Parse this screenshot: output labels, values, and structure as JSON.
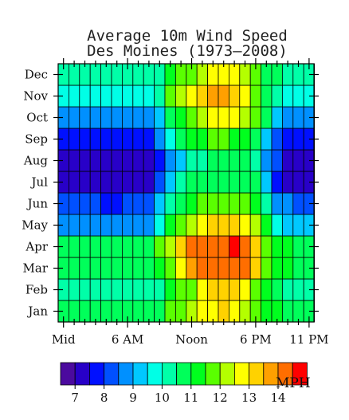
{
  "chart_data": {
    "type": "heatmap",
    "title": "Average 10m Wind Speed",
    "subtitle": "Des Moines (1973–2008)",
    "x_tick_labels": [
      "Mid",
      "6 AM",
      "Noon",
      "6 PM",
      "11 PM"
    ],
    "x_tick_hours": [
      0,
      6,
      12,
      18,
      23
    ],
    "x_hours": [
      0,
      1,
      2,
      3,
      4,
      5,
      6,
      7,
      8,
      9,
      10,
      11,
      12,
      13,
      14,
      15,
      16,
      17,
      18,
      19,
      20,
      21,
      22,
      23
    ],
    "y_categories": [
      "Jan",
      "Feb",
      "Mar",
      "Apr",
      "May",
      "Jun",
      "Jul",
      "Aug",
      "Sep",
      "Oct",
      "Nov",
      "Dec"
    ],
    "colorbar": {
      "label": "MPH",
      "tick_labels": [
        "7",
        "8",
        "9",
        "10",
        "11",
        "12",
        "13",
        "14"
      ],
      "levels": [
        6.75,
        7.25,
        7.75,
        8.25,
        8.75,
        9.25,
        9.75,
        10.25,
        10.75,
        11.25,
        11.75,
        12.25,
        12.75,
        13.25,
        13.75,
        14.25
      ],
      "colors": [
        "#4b0a9e",
        "#2800c8",
        "#0010ff",
        "#0050ff",
        "#0090ff",
        "#00c8ff",
        "#00ffe6",
        "#00ffa8",
        "#00ff5a",
        "#00ff1e",
        "#5aff00",
        "#b4ff00",
        "#ffff00",
        "#ffd200",
        "#ffa000",
        "#ff6e00",
        "#ff0000"
      ]
    },
    "values": [
      [
        10.4,
        10.4,
        10.4,
        10.4,
        10.4,
        10.4,
        10.4,
        10.4,
        10.4,
        10.4,
        11.4,
        11.7,
        12.0,
        12.4,
        12.4,
        12.9,
        12.4,
        12.0,
        11.6,
        11.1,
        10.9,
        10.6,
        10.4,
        10.4
      ],
      [
        9.9,
        9.9,
        9.9,
        9.9,
        9.9,
        9.9,
        9.9,
        9.9,
        9.9,
        9.9,
        10.9,
        11.4,
        11.7,
        12.4,
        12.9,
        12.9,
        12.9,
        12.4,
        11.4,
        10.9,
        10.4,
        9.9,
        9.9,
        9.9
      ],
      [
        10.4,
        10.4,
        10.4,
        10.4,
        10.4,
        10.4,
        10.4,
        10.4,
        10.4,
        10.9,
        11.6,
        12.4,
        13.4,
        13.9,
        14.1,
        14.1,
        14.1,
        13.9,
        12.9,
        11.4,
        10.9,
        10.9,
        10.4,
        10.4
      ],
      [
        10.6,
        10.6,
        10.6,
        10.4,
        10.4,
        10.4,
        10.4,
        10.6,
        10.6,
        11.4,
        11.9,
        12.9,
        13.9,
        14.1,
        14.1,
        14.1,
        14.4,
        13.9,
        12.9,
        11.4,
        11.2,
        10.9,
        10.6,
        10.6
      ],
      [
        8.4,
        8.4,
        8.4,
        8.4,
        8.4,
        8.4,
        8.4,
        8.4,
        8.4,
        9.4,
        10.9,
        11.4,
        12.0,
        12.4,
        12.9,
        12.9,
        12.9,
        12.4,
        12.0,
        10.9,
        9.4,
        8.9,
        8.9,
        8.9
      ],
      [
        8.0,
        8.0,
        8.0,
        8.0,
        7.6,
        7.6,
        8.0,
        8.0,
        8.0,
        8.9,
        9.9,
        10.4,
        10.9,
        11.4,
        11.4,
        11.4,
        11.4,
        11.4,
        10.9,
        9.9,
        8.4,
        8.4,
        8.0,
        8.0
      ],
      [
        7.1,
        7.1,
        7.1,
        7.1,
        7.1,
        6.9,
        6.9,
        7.1,
        7.1,
        7.9,
        9.0,
        9.9,
        10.4,
        10.4,
        10.4,
        10.4,
        10.4,
        10.4,
        10.4,
        8.9,
        7.6,
        7.1,
        7.1,
        7.1
      ],
      [
        6.9,
        6.9,
        6.9,
        6.9,
        6.9,
        6.9,
        6.9,
        6.9,
        6.9,
        7.4,
        8.4,
        9.0,
        9.9,
        9.9,
        10.4,
        10.4,
        10.4,
        10.4,
        9.9,
        8.4,
        7.9,
        7.1,
        7.1,
        7.1
      ],
      [
        7.6,
        7.6,
        7.4,
        7.4,
        7.4,
        7.4,
        7.4,
        7.4,
        7.6,
        8.4,
        9.6,
        10.4,
        11.1,
        11.1,
        11.4,
        11.4,
        11.1,
        10.9,
        10.4,
        9.0,
        7.9,
        7.6,
        7.6,
        7.6
      ],
      [
        8.4,
        8.4,
        8.4,
        8.4,
        8.4,
        8.4,
        8.4,
        8.4,
        8.4,
        9.0,
        10.4,
        11.1,
        11.6,
        12.1,
        12.4,
        12.4,
        12.4,
        12.1,
        11.4,
        10.4,
        9.0,
        8.6,
        8.4,
        8.4
      ],
      [
        9.4,
        9.4,
        9.4,
        9.4,
        9.4,
        9.4,
        9.6,
        9.6,
        9.6,
        9.9,
        11.4,
        12.0,
        12.4,
        12.9,
        13.4,
        13.4,
        12.9,
        12.4,
        11.4,
        10.4,
        9.9,
        9.6,
        9.4,
        9.4
      ],
      [
        9.9,
        9.9,
        9.9,
        9.9,
        9.9,
        9.9,
        9.9,
        9.9,
        9.9,
        9.9,
        10.9,
        11.4,
        11.7,
        12.1,
        12.4,
        12.4,
        12.4,
        12.0,
        11.4,
        10.4,
        10.4,
        9.9,
        9.9,
        9.9
      ]
    ]
  }
}
